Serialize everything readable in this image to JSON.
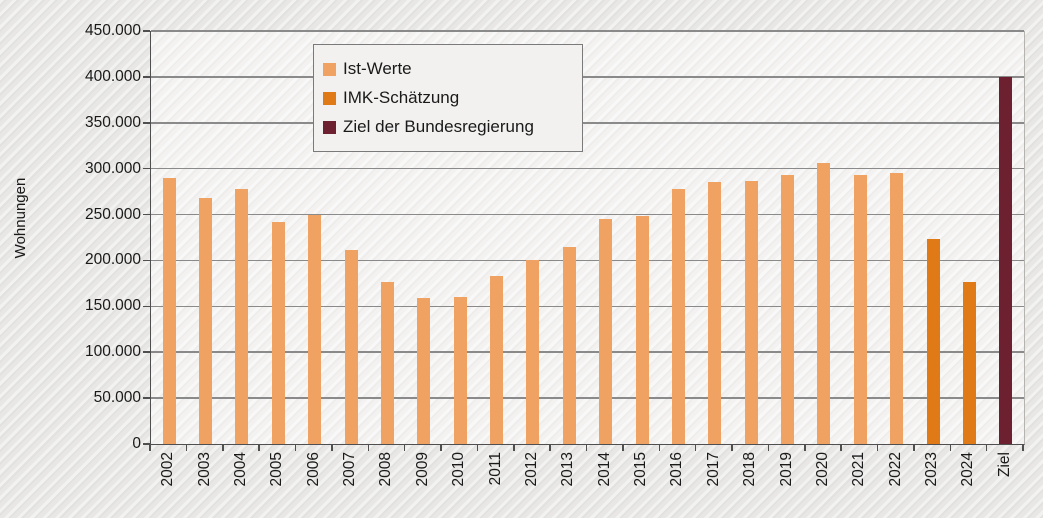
{
  "chart_data": {
    "type": "bar",
    "title": "",
    "xlabel": "",
    "ylabel": "Wohnungen",
    "ylim": [
      0,
      450000
    ],
    "ytick_step": 50000,
    "y_tick_labels": [
      "450.000",
      "400.000",
      "350.000",
      "300.000",
      "250.000",
      "200.000",
      "150.000",
      "100.000",
      "50.000",
      "0"
    ],
    "grid": "horizontal",
    "legend_position": "top-left-inside",
    "categories": [
      "2002",
      "2003",
      "2004",
      "2005",
      "2006",
      "2007",
      "2008",
      "2009",
      "2010",
      "2011",
      "2012",
      "2013",
      "2014",
      "2015",
      "2016",
      "2017",
      "2018",
      "2019",
      "2020",
      "2021",
      "2022",
      "2023",
      "2024",
      "Ziel"
    ],
    "values": [
      290000,
      268000,
      278000,
      242000,
      249000,
      211000,
      176000,
      159000,
      160000,
      183000,
      200000,
      215000,
      245000,
      248000,
      278000,
      285000,
      287000,
      293000,
      306000,
      293000,
      295000,
      223000,
      177000,
      400000
    ],
    "groups": [
      "ist",
      "ist",
      "ist",
      "ist",
      "ist",
      "ist",
      "ist",
      "ist",
      "ist",
      "ist",
      "ist",
      "ist",
      "ist",
      "ist",
      "ist",
      "ist",
      "ist",
      "ist",
      "ist",
      "ist",
      "ist",
      "imk",
      "imk",
      "ziel"
    ],
    "legend": [
      {
        "key": "ist",
        "label": "Ist-Werte",
        "color": "#f0a262"
      },
      {
        "key": "imk",
        "label": "IMK-Schätzung",
        "color": "#df7a17"
      },
      {
        "key": "ziel",
        "label": "Ziel der Bundesregierung",
        "color": "#6c2030"
      }
    ],
    "colors": {
      "ist": "#f0a262",
      "imk": "#df7a17",
      "ziel": "#6c2030"
    },
    "style_colors": {
      "background": "#e8e7e5",
      "plot_background": "#f3f2f0",
      "gridline": "#8a8a8a",
      "axis": "#4f4f4f",
      "text": "#1a1a1a"
    }
  }
}
